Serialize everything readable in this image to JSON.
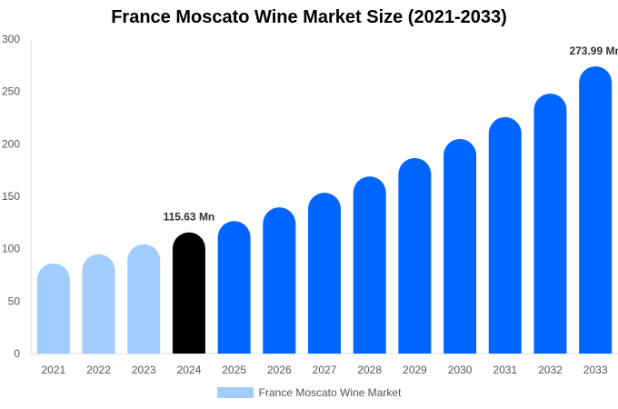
{
  "chart_data": {
    "type": "bar",
    "title": "France Moscato Wine Market Size (2021-2033)",
    "categories": [
      "2021",
      "2022",
      "2023",
      "2024",
      "2025",
      "2026",
      "2027",
      "2028",
      "2029",
      "2030",
      "2031",
      "2032",
      "2033"
    ],
    "series": [
      {
        "name": "France Moscato Wine Market",
        "values": [
          86,
          94.7,
          104.3,
          115.63,
          126.4,
          139.5,
          153.5,
          169,
          186.5,
          204.7,
          225.5,
          248,
          273.99
        ]
      }
    ],
    "data_labels": {
      "3": "115.63 Mn",
      "12": "273.99 Mn"
    },
    "ylim": [
      0,
      300
    ],
    "yticks": [
      0,
      50,
      100,
      150,
      200,
      250,
      300
    ],
    "grid": false,
    "legend_position": "bottom",
    "colors": {
      "historic": "#a0cdfd",
      "current": "#000000",
      "forecast": "#0066ff"
    }
  }
}
